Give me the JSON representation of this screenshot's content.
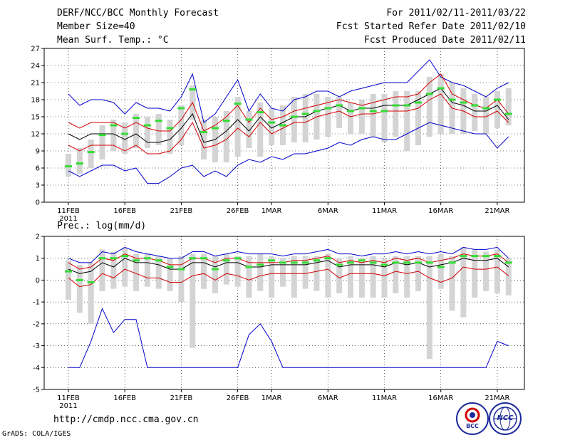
{
  "header": {
    "title": "DERF/NCC/BCC Monthly Forecast",
    "member_size": "Member Size=40",
    "variable": "Mean Surf. Temp.: °C",
    "period": "For 2011/02/11-2011/03/22",
    "fcst_started": "Fcst Started Refer Date 2011/02/10",
    "fcst_produced": "Fcst Produced Date 2011/02/11"
  },
  "footer": {
    "url": "http://cmdp.ncc.cma.gov.cn",
    "credit": "GrADS: COLA/IGES",
    "logo_bcc": "BCC",
    "logo_ncc": "NCC"
  },
  "colors": {
    "median": "#000000",
    "sigma": "#d40000",
    "extreme": "#0000cc",
    "box": "#d4d4d4",
    "mean": "#33dd33"
  },
  "chart_data": [
    {
      "type": "line",
      "title": "Mean Surf. Temp.: °C",
      "xlabel": "",
      "ylabel": "",
      "x_tick_labels": [
        "11FEB",
        "16FEB",
        "21FEB",
        "26FEB",
        "1MAR",
        "6MAR",
        "11MAR",
        "16MAR",
        "21MAR"
      ],
      "x_tick_days": [
        1,
        6,
        11,
        16,
        19,
        24,
        29,
        34,
        39
      ],
      "year_label": "2011",
      "ylim": [
        0,
        27
      ],
      "y_ticks": [
        0,
        3,
        6,
        9,
        12,
        15,
        18,
        21,
        24,
        27
      ],
      "days": [
        1,
        2,
        3,
        4,
        5,
        6,
        7,
        8,
        9,
        10,
        11,
        12,
        13,
        14,
        15,
        16,
        17,
        18,
        19,
        20,
        21,
        22,
        23,
        24,
        25,
        26,
        27,
        28,
        29,
        30,
        31,
        32,
        33,
        34,
        35,
        36,
        37,
        38,
        39,
        40
      ],
      "series": [
        {
          "name": "max",
          "values": [
            19,
            17,
            18,
            18,
            17.5,
            15.5,
            17.5,
            16.5,
            16.5,
            16,
            18.5,
            22.5,
            14,
            15.5,
            18.5,
            21.5,
            16,
            19,
            16.5,
            16,
            18,
            18.5,
            19.5,
            19.5,
            18.5,
            19.5,
            20,
            20.5,
            21,
            21,
            21,
            23,
            25,
            22,
            21,
            20.5,
            19.5,
            18.5,
            20,
            21
          ]
        },
        {
          "name": "upper_sigma",
          "values": [
            14,
            13,
            14,
            14,
            14,
            13,
            14,
            13,
            12.5,
            12.5,
            14.5,
            17.5,
            12.5,
            13.5,
            15,
            17,
            14,
            16.5,
            14.5,
            15,
            16,
            16.5,
            17,
            17.5,
            18,
            17.5,
            17,
            17.5,
            18,
            18.5,
            18.5,
            19,
            21,
            22.5,
            19,
            18,
            17,
            16.5,
            18,
            15.5
          ]
        },
        {
          "name": "median",
          "values": [
            12,
            11,
            12,
            12,
            12,
            11,
            12,
            10.5,
            10.5,
            11,
            13,
            15.5,
            10.5,
            11,
            12.5,
            14.5,
            12.5,
            15,
            13,
            14,
            15,
            15,
            16,
            16.5,
            17,
            16,
            16.5,
            16.5,
            17,
            17,
            17,
            18,
            19,
            20,
            17.5,
            17,
            16,
            16,
            17,
            14.5
          ]
        },
        {
          "name": "lower_sigma",
          "values": [
            10,
            9,
            10,
            10,
            10,
            9,
            10,
            8.5,
            8.5,
            9,
            11,
            14,
            9.5,
            10,
            11,
            13,
            11.5,
            14,
            12,
            13,
            14,
            14,
            15,
            15.5,
            16,
            15,
            15.5,
            15.5,
            16,
            16,
            16,
            16.5,
            18,
            19,
            16.5,
            16,
            15,
            15,
            16,
            14
          ]
        },
        {
          "name": "min",
          "values": [
            5.5,
            4.5,
            5.5,
            6.5,
            6.5,
            5.5,
            6,
            3.3,
            3.3,
            4.5,
            6,
            6.5,
            4.5,
            5.5,
            4.5,
            6.5,
            7.5,
            7,
            8,
            7.5,
            8.5,
            8.5,
            9,
            9.5,
            10.5,
            10,
            11,
            11.5,
            11,
            11,
            12,
            13,
            14,
            13.5,
            13,
            12.5,
            12,
            12,
            9.5,
            11.5
          ]
        },
        {
          "name": "ensemble_mean",
          "values": [
            6.3,
            6.8,
            8.8,
            11.8,
            13.5,
            12,
            14.8,
            13.5,
            14.3,
            13,
            16.5,
            19.8,
            12.3,
            13,
            14.3,
            17.3,
            14.5,
            15.8,
            14,
            13.5,
            15,
            15.5,
            16,
            16.5,
            17,
            16,
            16.5,
            16,
            16,
            17,
            17,
            17.5,
            19,
            20,
            18,
            17.5,
            17,
            16.5,
            18,
            15.5
          ]
        }
      ],
      "ranges": {
        "low": [
          4.5,
          5,
          6,
          7.5,
          9,
          8.5,
          9.5,
          9.5,
          10,
          8.5,
          10,
          14.5,
          7.5,
          7,
          7,
          8,
          9.5,
          8,
          10,
          10,
          10.5,
          10.5,
          11,
          11.5,
          13,
          12,
          12,
          11.5,
          10.5,
          11.5,
          9,
          10,
          11.5,
          12,
          12,
          12,
          12.5,
          12,
          13,
          13.5
        ],
        "high": [
          8.5,
          9.5,
          11,
          13.5,
          14.5,
          14,
          15.5,
          15,
          15.5,
          14.5,
          17,
          20.5,
          14.5,
          15,
          16,
          18.5,
          16,
          17.5,
          16.5,
          17,
          18.5,
          19,
          19,
          18.5,
          18.5,
          17.5,
          18,
          19,
          19,
          19.5,
          19.5,
          19.5,
          22,
          22.5,
          21,
          20,
          19,
          18.5,
          19.5,
          20
        ]
      }
    },
    {
      "type": "line",
      "title": "Prec.: log(mm/d)",
      "xlabel": "",
      "ylabel": "",
      "x_tick_labels": [
        "11FEB",
        "16FEB",
        "21FEB",
        "26FEB",
        "1MAR",
        "6MAR",
        "11MAR",
        "16MAR",
        "21MAR"
      ],
      "x_tick_days": [
        1,
        6,
        11,
        16,
        19,
        24,
        29,
        34,
        39
      ],
      "year_label": "2011",
      "ylim": [
        -5,
        2
      ],
      "y_ticks": [
        -5,
        -4,
        -3,
        -2,
        -1,
        0,
        1,
        2
      ],
      "days": [
        1,
        2,
        3,
        4,
        5,
        6,
        7,
        8,
        9,
        10,
        11,
        12,
        13,
        14,
        15,
        16,
        17,
        18,
        19,
        20,
        21,
        22,
        23,
        24,
        25,
        26,
        27,
        28,
        29,
        30,
        31,
        32,
        33,
        34,
        35,
        36,
        37,
        38,
        39,
        40
      ],
      "series": [
        {
          "name": "max",
          "values": [
            1.0,
            0.8,
            0.8,
            1.3,
            1.2,
            1.5,
            1.3,
            1.2,
            1.1,
            1.0,
            1.0,
            1.3,
            1.3,
            1.1,
            1.2,
            1.3,
            1.2,
            1.2,
            1.2,
            1.1,
            1.2,
            1.2,
            1.3,
            1.4,
            1.2,
            1.2,
            1.1,
            1.2,
            1.2,
            1.3,
            1.2,
            1.3,
            1.2,
            1.3,
            1.2,
            1.5,
            1.4,
            1.4,
            1.5,
            1.0
          ]
        },
        {
          "name": "upper_sigma",
          "values": [
            0.8,
            0.5,
            0.6,
            1.0,
            0.9,
            1.2,
            1.0,
            1.0,
            0.9,
            0.7,
            0.7,
            1.0,
            1.0,
            0.8,
            1.0,
            1.0,
            0.8,
            0.8,
            0.8,
            0.8,
            0.9,
            0.9,
            1.0,
            1.1,
            0.8,
            0.9,
            0.8,
            0.9,
            0.8,
            1.0,
            0.9,
            1.0,
            0.8,
            0.9,
            1.0,
            1.2,
            1.1,
            1.1,
            1.2,
            0.8
          ]
        },
        {
          "name": "median",
          "values": [
            0.5,
            0.3,
            0.4,
            0.8,
            0.6,
            1.0,
            0.8,
            0.8,
            0.7,
            0.5,
            0.5,
            0.8,
            0.8,
            0.6,
            0.8,
            0.8,
            0.6,
            0.6,
            0.7,
            0.7,
            0.7,
            0.7,
            0.8,
            0.9,
            0.6,
            0.7,
            0.7,
            0.7,
            0.6,
            0.8,
            0.7,
            0.8,
            0.6,
            0.7,
            0.8,
            1.0,
            0.9,
            0.9,
            1.0,
            0.6
          ]
        },
        {
          "name": "lower_sigma",
          "values": [
            0.1,
            -0.3,
            -0.2,
            0.3,
            0.1,
            0.5,
            0.3,
            0.1,
            0.1,
            -0.1,
            -0.1,
            0.2,
            0.3,
            0.0,
            0.3,
            0.2,
            0.0,
            0.2,
            0.3,
            0.3,
            0.3,
            0.3,
            0.4,
            0.5,
            0.1,
            0.3,
            0.3,
            0.3,
            0.2,
            0.4,
            0.3,
            0.4,
            0.1,
            -0.1,
            0.1,
            0.6,
            0.5,
            0.5,
            0.6,
            0.2
          ]
        },
        {
          "name": "min",
          "values": [
            -4.0,
            -4.0,
            -2.8,
            -1.3,
            -2.4,
            -1.8,
            -1.8,
            -4.0,
            -4.0,
            -4.0,
            -4.0,
            -4.0,
            -4.0,
            -4.0,
            -4.0,
            -4.0,
            -2.5,
            -2.0,
            -2.8,
            -4.0,
            -4.0,
            -4.0,
            -4.0,
            -4.0,
            -4.0,
            -4.0,
            -4.0,
            -4.0,
            -4.0,
            -4.0,
            -4.0,
            -4.0,
            -4.0,
            -4.0,
            -4.0,
            -4.0,
            -4.0,
            -4.0,
            -2.8,
            -3.0
          ]
        },
        {
          "name": "ensemble_mean",
          "values": [
            0.4,
            0.0,
            -0.1,
            1.0,
            1.0,
            1.1,
            0.9,
            1.0,
            0.9,
            0.6,
            0.5,
            1.0,
            1.0,
            0.5,
            0.9,
            1.0,
            0.6,
            0.7,
            0.9,
            0.8,
            0.8,
            0.8,
            0.9,
            1.0,
            0.7,
            0.8,
            0.9,
            0.8,
            0.7,
            0.8,
            0.8,
            0.8,
            0.8,
            0.6,
            0.8,
            1.1,
            1.1,
            1.1,
            1.1,
            0.8
          ]
        }
      ],
      "ranges": {
        "low": [
          -0.9,
          -1.5,
          -2.0,
          -0.5,
          -0.4,
          -0.3,
          -0.5,
          -0.3,
          -0.4,
          -0.5,
          -1.0,
          -3.1,
          -0.4,
          -0.6,
          -0.2,
          -0.3,
          -0.8,
          -0.5,
          -0.8,
          -0.3,
          -0.8,
          -0.4,
          -0.5,
          -0.8,
          -0.6,
          -0.8,
          -0.8,
          -0.8,
          -0.8,
          -0.6,
          -0.8,
          -0.5,
          -3.6,
          -0.4,
          -1.4,
          -1.7,
          -0.8,
          -0.5,
          -0.6,
          -0.7
        ],
        "high": [
          0.9,
          0.7,
          0.8,
          1.4,
          1.3,
          1.5,
          1.2,
          1.2,
          1.1,
          1.0,
          1.1,
          1.2,
          1.2,
          1.1,
          1.2,
          1.1,
          1.1,
          1.2,
          1.1,
          1.0,
          1.1,
          1.1,
          1.1,
          1.2,
          1.0,
          1.1,
          1.0,
          1.1,
          1.0,
          1.1,
          1.1,
          1.1,
          1.1,
          1.2,
          1.1,
          1.5,
          1.4,
          1.3,
          1.4,
          1.0
        ]
      }
    }
  ]
}
